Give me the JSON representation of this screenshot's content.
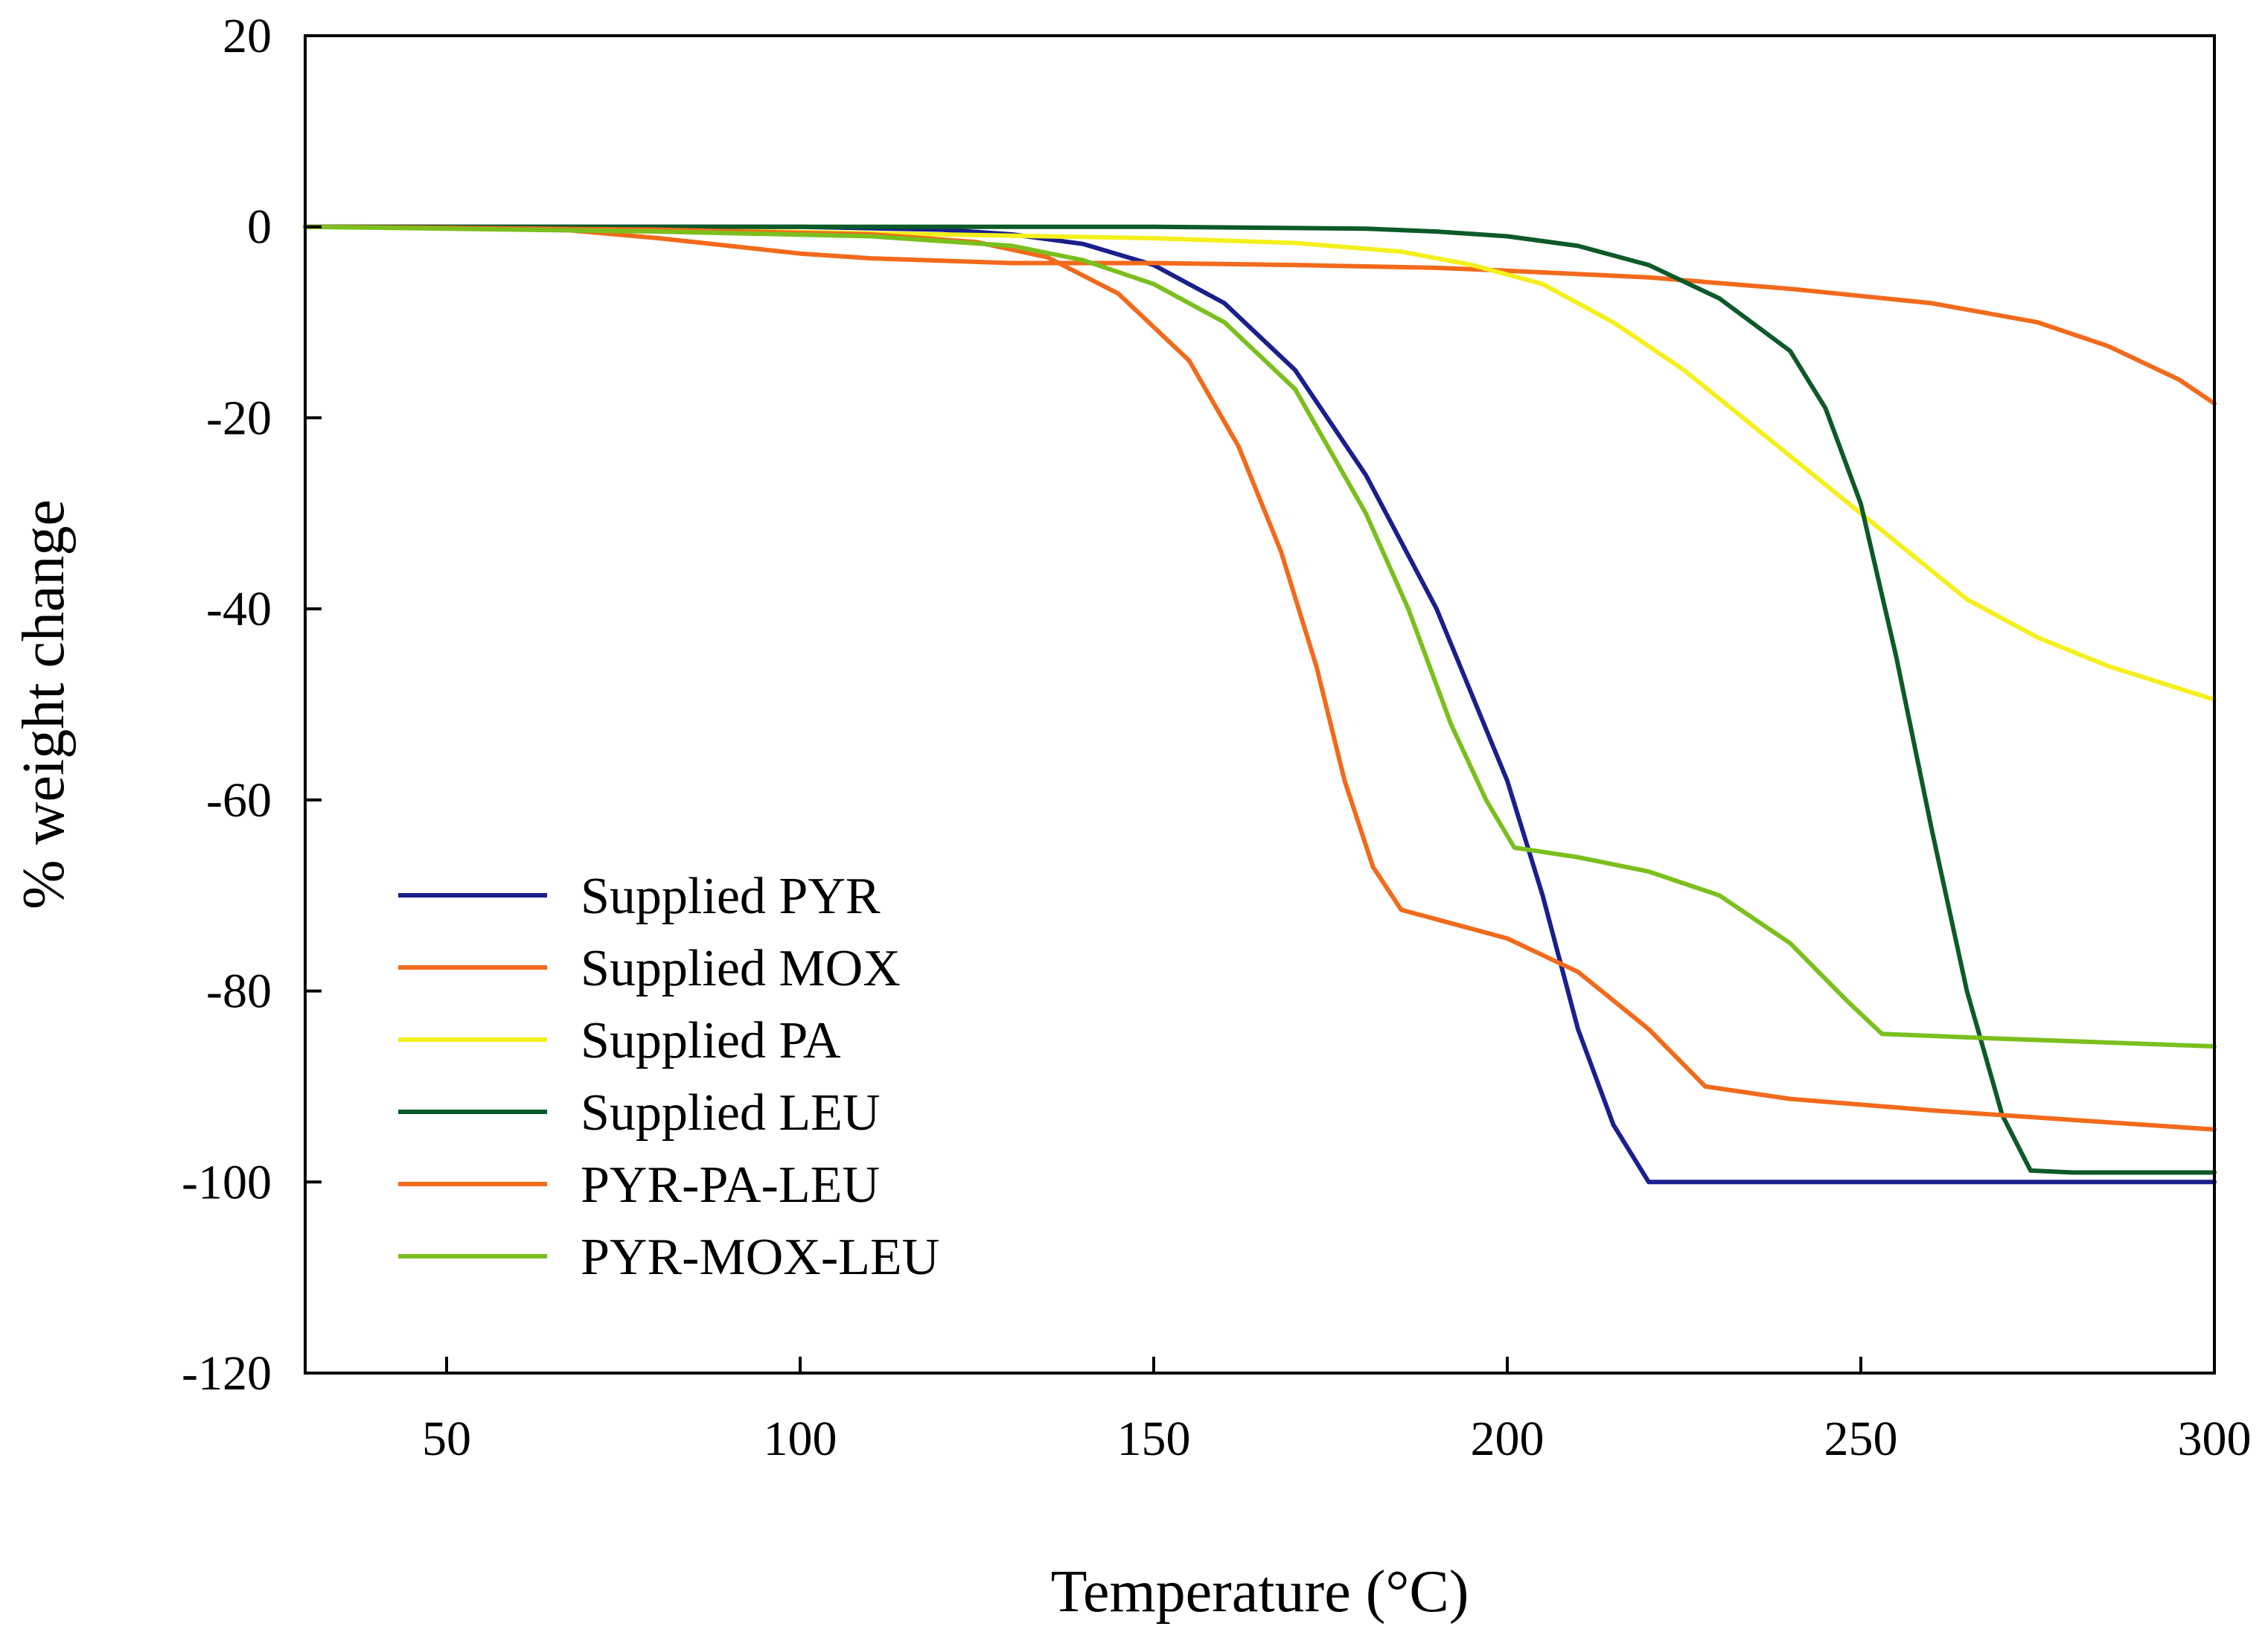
{
  "chart_data": {
    "type": "line",
    "title": "",
    "xlabel": "Temperature (°C)",
    "ylabel": "% weight change",
    "xlim": [
      30,
      300
    ],
    "ylim": [
      -120,
      20
    ],
    "xticks": [
      50,
      100,
      150,
      200,
      250,
      300
    ],
    "yticks": [
      20,
      0,
      -20,
      -40,
      -60,
      -80,
      -100,
      -120
    ],
    "grid": false,
    "legend_position": "lower-left",
    "series": [
      {
        "name": "Supplied PYR",
        "color": "#1a1f8c",
        "points": [
          [
            30,
            0
          ],
          [
            100,
            0
          ],
          [
            120,
            -0.3
          ],
          [
            130,
            -0.8
          ],
          [
            140,
            -1.8
          ],
          [
            150,
            -4
          ],
          [
            160,
            -8
          ],
          [
            170,
            -15
          ],
          [
            180,
            -26
          ],
          [
            190,
            -40
          ],
          [
            200,
            -58
          ],
          [
            205,
            -70
          ],
          [
            210,
            -84
          ],
          [
            215,
            -94
          ],
          [
            220,
            -100
          ],
          [
            230,
            -100
          ],
          [
            300,
            -100
          ]
        ]
      },
      {
        "name": "Supplied MOX",
        "color": "#f26a1b",
        "points": [
          [
            30,
            0
          ],
          [
            50,
            0
          ],
          [
            65,
            -0.2
          ],
          [
            80,
            -1.2
          ],
          [
            90,
            -2
          ],
          [
            100,
            -2.8
          ],
          [
            110,
            -3.3
          ],
          [
            130,
            -3.8
          ],
          [
            150,
            -3.8
          ],
          [
            170,
            -4
          ],
          [
            190,
            -4.3
          ],
          [
            200,
            -4.6
          ],
          [
            220,
            -5.3
          ],
          [
            240,
            -6.5
          ],
          [
            260,
            -8
          ],
          [
            275,
            -10
          ],
          [
            285,
            -12.5
          ],
          [
            295,
            -16
          ],
          [
            300,
            -18.5
          ]
        ]
      },
      {
        "name": "Supplied PA",
        "color": "#f5ef1c",
        "points": [
          [
            30,
            0
          ],
          [
            80,
            -0.3
          ],
          [
            120,
            -0.8
          ],
          [
            150,
            -1.2
          ],
          [
            170,
            -1.7
          ],
          [
            185,
            -2.6
          ],
          [
            195,
            -4
          ],
          [
            205,
            -6
          ],
          [
            215,
            -10
          ],
          [
            225,
            -15
          ],
          [
            235,
            -21
          ],
          [
            245,
            -27
          ],
          [
            255,
            -33
          ],
          [
            265,
            -39
          ],
          [
            275,
            -43
          ],
          [
            285,
            -46
          ],
          [
            300,
            -49.5
          ]
        ]
      },
      {
        "name": "Supplied LEU",
        "color": "#0d5a28",
        "points": [
          [
            30,
            0
          ],
          [
            100,
            0
          ],
          [
            150,
            0
          ],
          [
            180,
            -0.2
          ],
          [
            190,
            -0.5
          ],
          [
            200,
            -1
          ],
          [
            210,
            -2
          ],
          [
            220,
            -4
          ],
          [
            230,
            -7.5
          ],
          [
            240,
            -13
          ],
          [
            245,
            -19
          ],
          [
            250,
            -29
          ],
          [
            255,
            -45
          ],
          [
            260,
            -63
          ],
          [
            265,
            -80
          ],
          [
            270,
            -93
          ],
          [
            274,
            -98.8
          ],
          [
            280,
            -99
          ],
          [
            300,
            -99
          ]
        ]
      },
      {
        "name": "PYR-PA-LEU",
        "color": "#f26a1b",
        "points": [
          [
            30,
            0
          ],
          [
            80,
            -0.3
          ],
          [
            110,
            -0.8
          ],
          [
            125,
            -1.6
          ],
          [
            135,
            -3.2
          ],
          [
            145,
            -7
          ],
          [
            155,
            -14
          ],
          [
            162,
            -23
          ],
          [
            168,
            -34
          ],
          [
            173,
            -46
          ],
          [
            177,
            -58
          ],
          [
            181,
            -67
          ],
          [
            185,
            -71.5
          ],
          [
            190,
            -72.5
          ],
          [
            200,
            -74.5
          ],
          [
            210,
            -78
          ],
          [
            220,
            -84
          ],
          [
            228,
            -90
          ],
          [
            240,
            -91.3
          ],
          [
            260,
            -92.5
          ],
          [
            280,
            -93.5
          ],
          [
            300,
            -94.5
          ]
        ]
      },
      {
        "name": "PYR-MOX-LEU",
        "color": "#7bbf1e",
        "points": [
          [
            30,
            0
          ],
          [
            80,
            -0.5
          ],
          [
            110,
            -1
          ],
          [
            130,
            -2
          ],
          [
            140,
            -3.5
          ],
          [
            150,
            -6
          ],
          [
            160,
            -10
          ],
          [
            170,
            -17
          ],
          [
            180,
            -30
          ],
          [
            186,
            -40
          ],
          [
            192,
            -52
          ],
          [
            197,
            -60
          ],
          [
            201,
            -65
          ],
          [
            210,
            -66
          ],
          [
            220,
            -67.5
          ],
          [
            230,
            -70
          ],
          [
            240,
            -75
          ],
          [
            248,
            -81
          ],
          [
            253,
            -84.5
          ],
          [
            270,
            -85
          ],
          [
            300,
            -85.8
          ]
        ]
      }
    ]
  }
}
